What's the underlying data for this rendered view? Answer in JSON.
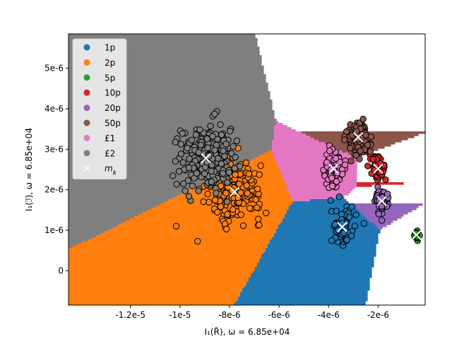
{
  "chart_data": {
    "type": "scatter",
    "xlabel": "I₁(R̃), ω = 6.85e+04",
    "ylabel": "I₁(ℐ), ω = 6.85e+04",
    "xlim": [
      -1.45e-05,
      -1e-07
    ],
    "ylim": [
      -8.5e-07,
      5.85e-06
    ],
    "x_ticks": [
      {
        "value": -1.2e-05,
        "label": "-1.2e-5"
      },
      {
        "value": -1e-05,
        "label": "-1e-5"
      },
      {
        "value": -8e-06,
        "label": "-8e-6"
      },
      {
        "value": -6e-06,
        "label": "-6e-6"
      },
      {
        "value": -4e-06,
        "label": "-4e-6"
      },
      {
        "value": -2e-06,
        "label": "-2e-6"
      }
    ],
    "y_ticks": [
      {
        "value": 0,
        "label": "0"
      },
      {
        "value": 1e-06,
        "label": "1e-6"
      },
      {
        "value": 2e-06,
        "label": "2e-6"
      },
      {
        "value": 3e-06,
        "label": "3e-6"
      },
      {
        "value": 4e-06,
        "label": "4e-6"
      },
      {
        "value": 5e-06,
        "label": "5e-6"
      }
    ],
    "legend_position": "top-left",
    "classes": [
      {
        "label": "1p",
        "color": "#1f77b4",
        "centroid": [
          -3.45e-06,
          1.08e-06
        ],
        "spread": [
          4.5e-07,
          4.5e-07
        ],
        "n": 90
      },
      {
        "label": "2p",
        "color": "#ff7f0e",
        "centroid": [
          -7.8e-06,
          1.95e-06
        ],
        "spread": [
          1.1e-06,
          7e-07
        ],
        "n": 220
      },
      {
        "label": "5p",
        "color": "#2ca02c",
        "centroid": [
          -4.5e-07,
          8.8e-07
        ],
        "spread": [
          8e-08,
          1.2e-07
        ],
        "n": 25
      },
      {
        "label": "10p",
        "color": "#d62728",
        "centroid": [
          -2e-06,
          2.52e-06
        ],
        "spread": [
          3.5e-07,
          3e-07
        ],
        "n": 70
      },
      {
        "label": "20p",
        "color": "#9467bd",
        "centroid": [
          -1.85e-06,
          1.72e-06
        ],
        "spread": [
          2.5e-07,
          3e-07
        ],
        "n": 70
      },
      {
        "label": "50p",
        "color": "#8c564b",
        "centroid": [
          -2.8e-06,
          3.3e-06
        ],
        "spread": [
          4.5e-07,
          4.5e-07
        ],
        "n": 110
      },
      {
        "label": "£1",
        "color": "#e377c2",
        "centroid": [
          -3.8e-06,
          2.52e-06
        ],
        "spread": [
          3.5e-07,
          4e-07
        ],
        "n": 110
      },
      {
        "label": "£2",
        "color": "#7f7f7f",
        "centroid": [
          -8.95e-06,
          2.78e-06
        ],
        "spread": [
          1.1e-06,
          8e-07
        ],
        "n": 240
      }
    ],
    "centroid_marker": {
      "label": "m_k",
      "color": "#ffffff"
    }
  }
}
